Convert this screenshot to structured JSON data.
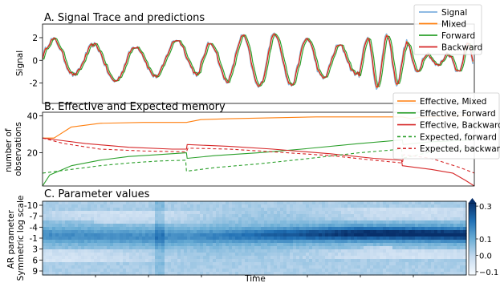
{
  "x_axis_label": "Time",
  "chart_data": [
    {
      "type": "line",
      "title": "A. Signal Trace and predictions",
      "ylabel": "Signal",
      "xlabel": "",
      "xlim": [
        0,
        300
      ],
      "ylim": [
        -3.8,
        3.2
      ],
      "yticks": [
        2,
        0,
        -2
      ],
      "grid": false,
      "legend_position": "top-right",
      "series": [
        {
          "name": "Signal",
          "color": "#7fb1df",
          "width": 1.6
        },
        {
          "name": "Mixed",
          "color": "#ff7f0e",
          "width": 1.2
        },
        {
          "name": "Forward",
          "color": "#2ca02c",
          "width": 1.2
        },
        {
          "name": "Backward",
          "color": "#d62728",
          "width": 1.2
        }
      ]
    },
    {
      "type": "line",
      "title": "B. Effective and Expected memory",
      "ylabel": "number of\nobservations",
      "xlabel": "",
      "xlim": [
        0,
        300
      ],
      "ylim": [
        2,
        42
      ],
      "yticks": [
        40,
        20
      ],
      "grid": false,
      "legend_position": "top-right",
      "series": [
        {
          "name": "Effective, Mixed",
          "color": "#ff7f0e",
          "dash": "",
          "x": [
            0,
            8,
            20,
            40,
            70,
            100,
            110,
            130,
            160,
            190,
            220,
            250,
            256,
            264,
            290,
            300
          ],
          "y": [
            28,
            28,
            34,
            36,
            36.5,
            36.5,
            38,
            38.5,
            39,
            39.5,
            39.5,
            39.5,
            38.5,
            39.5,
            40,
            40
          ]
        },
        {
          "name": "Effective, Forward",
          "color": "#2ca02c",
          "dash": "",
          "x": [
            0,
            5,
            20,
            40,
            60,
            80,
            100,
            100.5,
            120,
            150,
            180,
            220,
            250,
            250.5,
            270,
            300
          ],
          "y": [
            2,
            8,
            13,
            16,
            18,
            19,
            20,
            17,
            18.5,
            20,
            22,
            25,
            27,
            24.5,
            26,
            27
          ]
        },
        {
          "name": "Effective, Backward",
          "color": "#d62728",
          "dash": "",
          "x": [
            0,
            10,
            30,
            60,
            90,
            100,
            100.5,
            130,
            160,
            200,
            230,
            249.5,
            250,
            270,
            285,
            294,
            300
          ],
          "y": [
            28,
            27,
            25,
            23,
            22,
            22,
            24.5,
            23.5,
            22,
            19.5,
            17,
            16,
            13,
            11,
            9,
            5,
            2
          ]
        },
        {
          "name": "Expected, forward",
          "color": "#2ca02c",
          "dash": "4,3",
          "x": [
            0,
            5,
            20,
            40,
            60,
            80,
            99.5,
            100,
            120,
            150,
            180,
            220,
            249.5,
            250,
            270,
            300
          ],
          "y": [
            9,
            9.5,
            11,
            13,
            14.5,
            15.5,
            16,
            10,
            12,
            14,
            16.5,
            20,
            22,
            17,
            20.5,
            22.5
          ]
        },
        {
          "name": "Expected, backward",
          "color": "#d62728",
          "dash": "4,3",
          "x": [
            0,
            15,
            40,
            70,
            100,
            101,
            130,
            160,
            200,
            230,
            250,
            251,
            270,
            290,
            300
          ],
          "y": [
            28,
            25,
            22,
            21,
            20.5,
            22.5,
            22,
            20.5,
            18.5,
            16,
            14.5,
            19,
            17,
            12,
            9
          ]
        }
      ]
    },
    {
      "type": "heatmap",
      "title": "C. Parameter values",
      "ylabel": "AR parameter\nSymmetric log scale",
      "xlabel": "",
      "yticks": [
        "-10",
        "-7",
        "-4",
        "-1",
        "3",
        "6",
        "9"
      ],
      "colorbar_ticks": [
        0.3,
        0.1,
        0.0,
        -0.1
      ],
      "colorbar_tick_labels": [
        "0.3",
        "0.1",
        "0.0",
        "−0.1"
      ],
      "vmin": -0.12,
      "vmax": 0.32,
      "colormap": "Blues"
    }
  ]
}
